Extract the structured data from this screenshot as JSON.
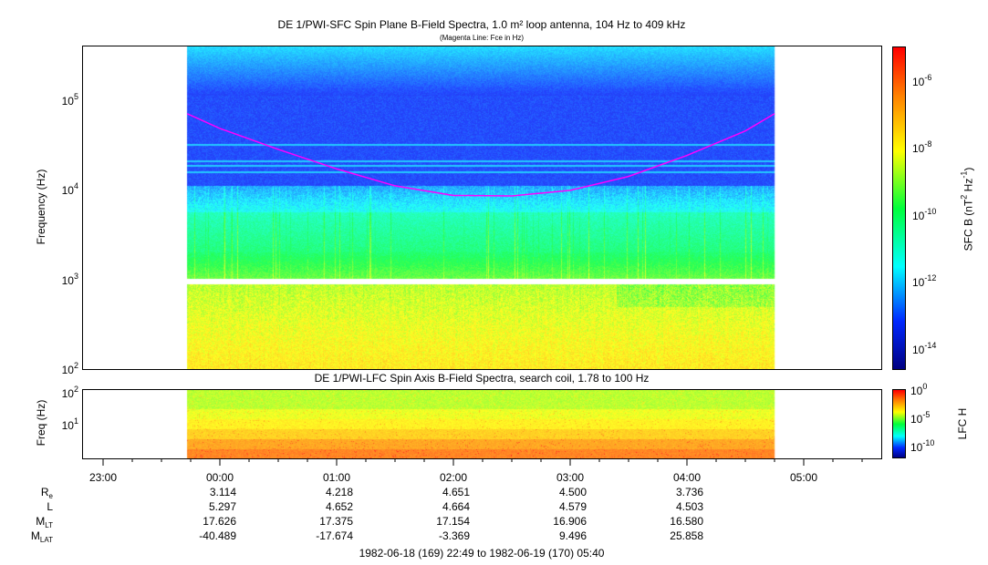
{
  "chart_data": [
    {
      "type": "heatmap",
      "title": "DE 1/PWI-SFC  Spin Plane B-Field Spectra, 1.0 m² loop antenna, 104 Hz to 409 kHz",
      "subtitle": "(Magenta Line: Fce in Hz)",
      "ylabel": "Frequency (Hz)",
      "yscale": "log",
      "ylim": [
        100,
        409000
      ],
      "yticks": [
        {
          "base": "10",
          "exp": "2"
        },
        {
          "base": "10",
          "exp": "3"
        },
        {
          "base": "10",
          "exp": "4"
        },
        {
          "base": "10",
          "exp": "5"
        }
      ],
      "colorbar": {
        "label": "SFC B (nT",
        "label_sup1": "2",
        "label_mid": " Hz",
        "label_sup2": "-1",
        "label_end": ")",
        "range_log10": [
          -14.6,
          -5
        ],
        "ticks": [
          {
            "base": "10",
            "exp": "-6"
          },
          {
            "base": "10",
            "exp": "-8"
          },
          {
            "base": "10",
            "exp": "-10"
          },
          {
            "base": "10",
            "exp": "-12"
          },
          {
            "base": "10",
            "exp": "-14"
          }
        ]
      },
      "data_time_range_hours": [
        -0.28,
        4.75
      ],
      "fce_line": {
        "color": "#ff00ff",
        "hours": [
          -0.28,
          0,
          0.5,
          1,
          1.5,
          2,
          2.5,
          3,
          3.5,
          4,
          4.5,
          4.75
        ],
        "hz": [
          70000,
          48000,
          28000,
          17000,
          11000,
          8600,
          8500,
          9800,
          14000,
          24000,
          45000,
          70000
        ]
      }
    },
    {
      "type": "heatmap",
      "title": "DE 1/PWI-LFC  Spin Axis B-Field Spectra, search coil, 1.78 to 100 Hz",
      "ylabel": "Freq (Hz)",
      "yscale": "log",
      "ylim": [
        1.5,
        120
      ],
      "yticks": [
        {
          "base": "10",
          "exp": "1"
        },
        {
          "base": "10",
          "exp": "2"
        }
      ],
      "colorbar": {
        "label": "LFC H",
        "range_log10": [
          -12,
          0
        ],
        "ticks": [
          {
            "base": "10",
            "exp": "0"
          },
          {
            "base": "10",
            "exp": "-5"
          },
          {
            "base": "10",
            "exp": "-10"
          }
        ]
      }
    }
  ],
  "xaxis": {
    "ticks": [
      "23:00",
      "00:00",
      "01:00",
      "02:00",
      "03:00",
      "04:00",
      "05:00"
    ],
    "tick_hours": [
      -1,
      0,
      1,
      2,
      3,
      4,
      5
    ],
    "range_hours": [
      -1.183,
      5.667
    ]
  },
  "ephemeris": {
    "rows": [
      {
        "label": "R",
        "sub": "e",
        "values": [
          "3.114",
          "4.218",
          "4.651",
          "4.500",
          "3.736"
        ]
      },
      {
        "label": "L",
        "sub": "",
        "values": [
          "5.297",
          "4.652",
          "4.664",
          "4.579",
          "4.503"
        ]
      },
      {
        "label": "M",
        "sub": "LT",
        "values": [
          "17.626",
          "17.375",
          "17.154",
          "16.906",
          "16.580"
        ]
      },
      {
        "label": "M",
        "sub": "LAT",
        "values": [
          "-40.489",
          "-17.674",
          "-3.369",
          "9.496",
          "25.858"
        ]
      }
    ]
  },
  "time_range": "1982-06-18 (169) 22:49 to 1982-06-19 (170) 05:40"
}
